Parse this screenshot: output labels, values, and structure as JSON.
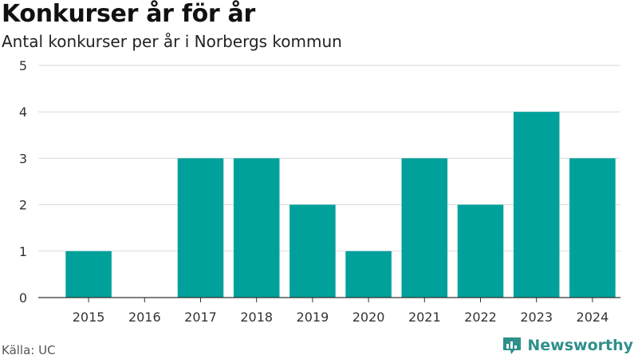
{
  "header": {
    "title": "Konkurser år för år",
    "subtitle": "Antal konkurser per år i Norbergs kommun"
  },
  "footer": {
    "source": "Källa: UC",
    "brand": "Newsworthy",
    "brand_icon": "bar-chart-speech-bubble-icon"
  },
  "colors": {
    "bar": "#00a19a",
    "grid": "#d9d9d9",
    "axis": "#333333",
    "brand": "#2f8f8a"
  },
  "chart_data": {
    "type": "bar",
    "title": "Konkurser år för år",
    "subtitle": "Antal konkurser per år i Norbergs kommun",
    "categories": [
      "2015",
      "2016",
      "2017",
      "2018",
      "2019",
      "2020",
      "2021",
      "2022",
      "2023",
      "2024"
    ],
    "values": [
      1,
      0,
      3,
      3,
      2,
      1,
      3,
      2,
      4,
      3
    ],
    "ylim": [
      0,
      5
    ],
    "yticks": [
      0,
      1,
      2,
      3,
      4,
      5
    ],
    "xlabel": "",
    "ylabel": "",
    "grid": "horizontal",
    "legend": "none"
  }
}
